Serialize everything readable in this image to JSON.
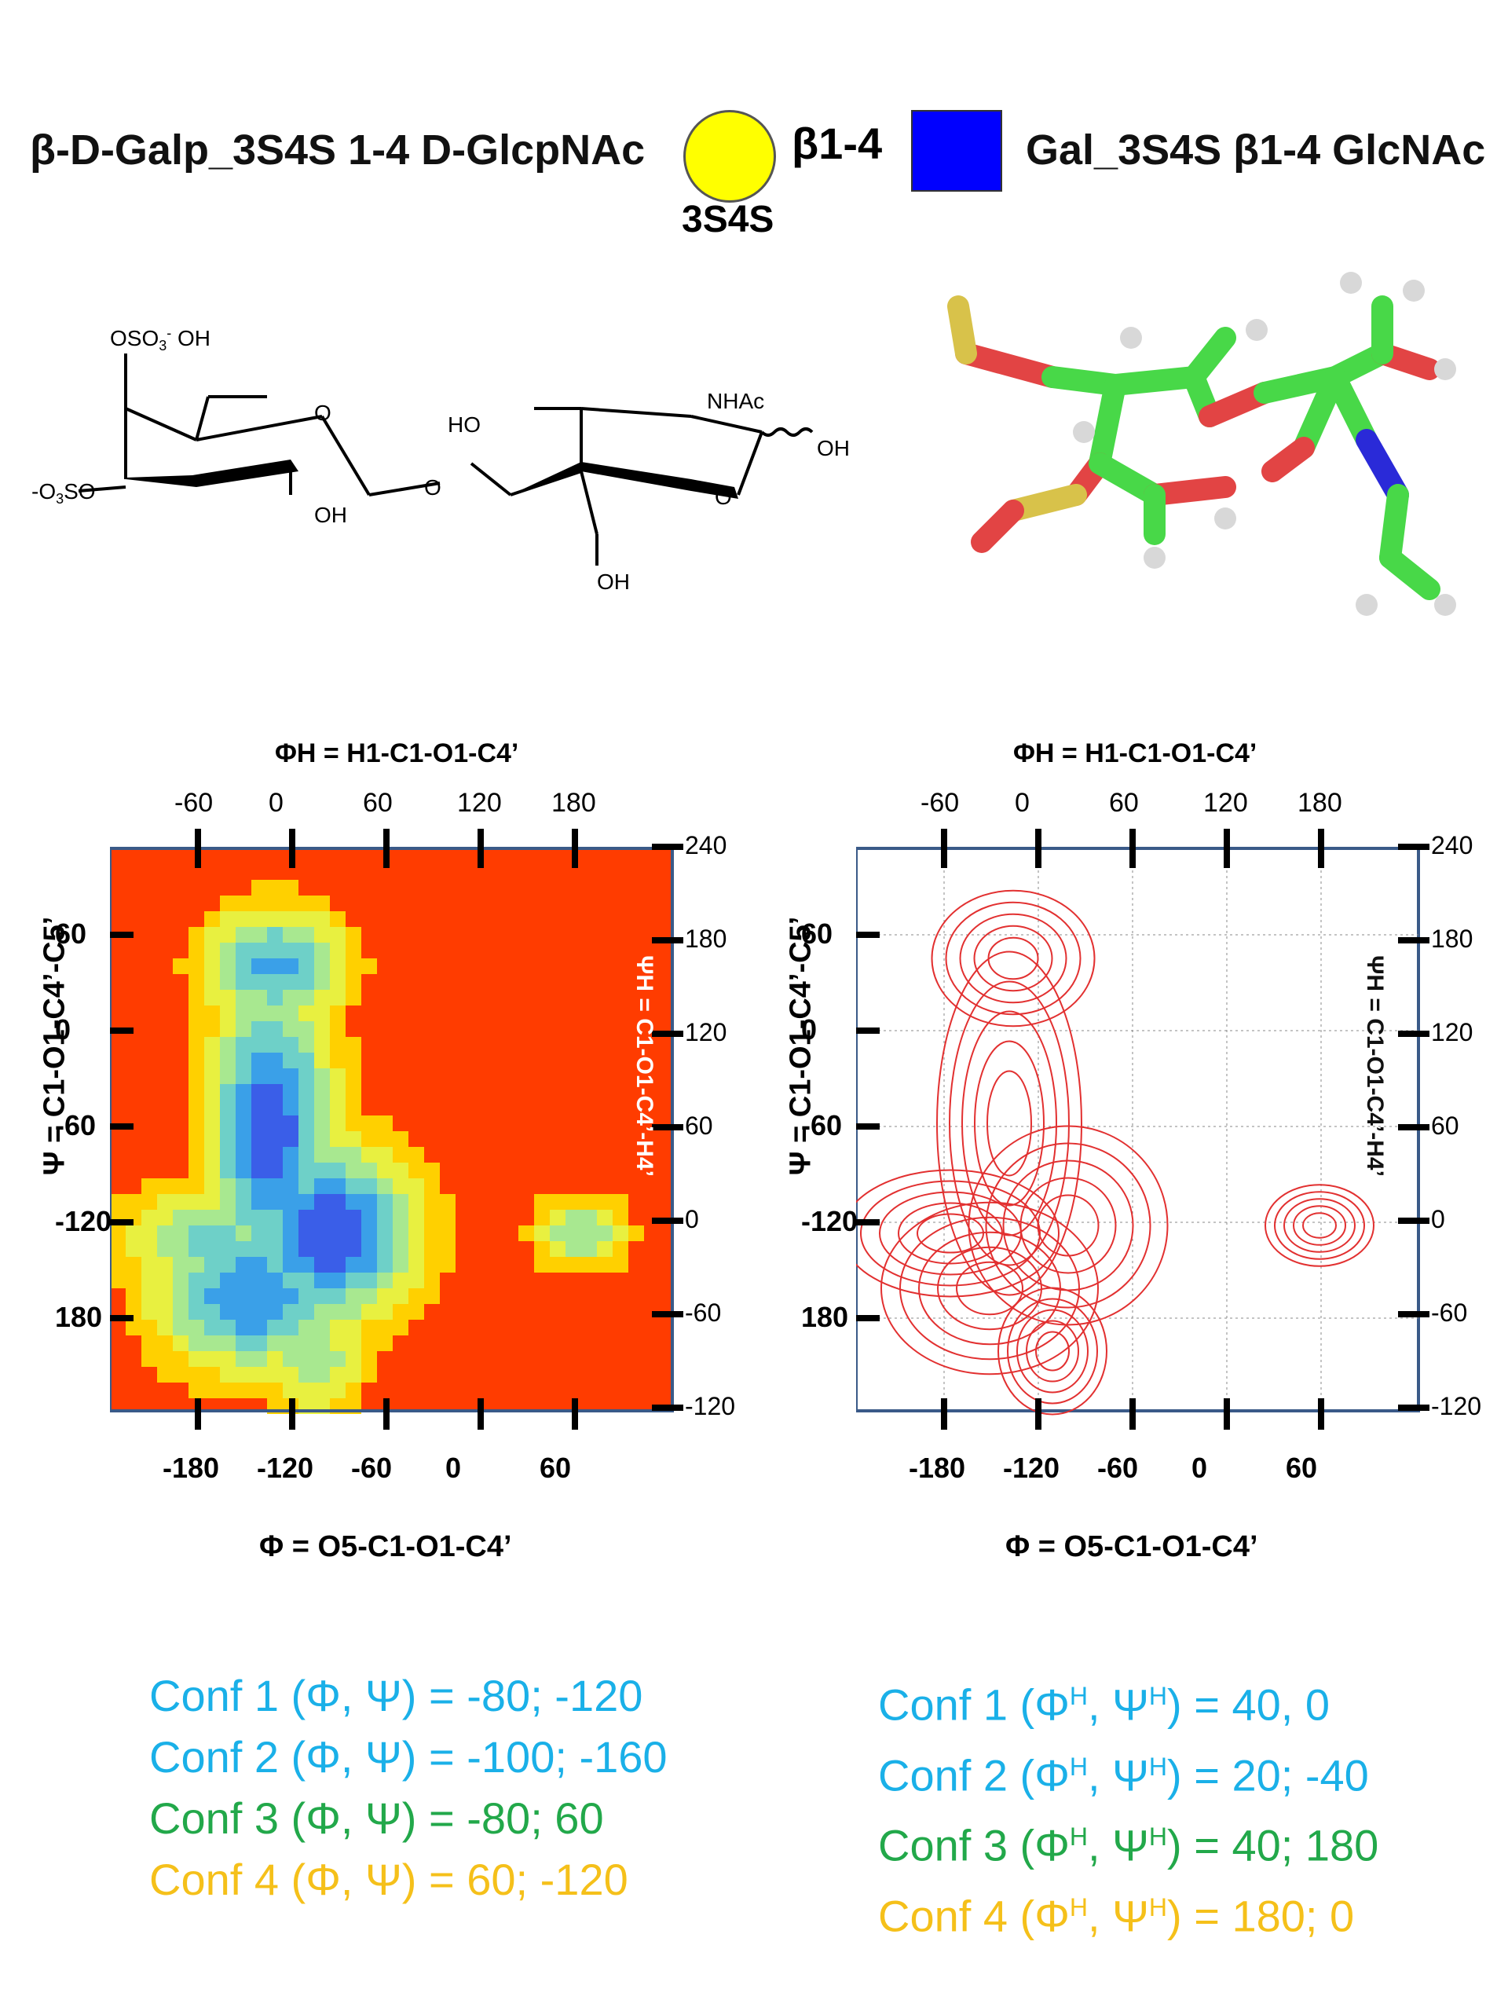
{
  "header": {
    "title_left": "β-D-Galp_3S4S 1-4 D-GlcpNAc",
    "beta_link": "β1-4",
    "circle_label": "3S4S",
    "title_right": "Gal_3S4S β1-4 GlcNAc",
    "colors": {
      "gal": "#ffff00",
      "glcnac": "#0000ff"
    }
  },
  "structure": {
    "labels": [
      "OSO3- OH",
      "-O3SO",
      "OH",
      "O",
      "HO",
      "NHAc",
      "OH",
      "O",
      "OH",
      "O"
    ]
  },
  "plots": {
    "top_axis_title": "ΦH = H1-C1-O1-C4’",
    "top_ticks": [
      "-60",
      "0",
      "60",
      "120",
      "180"
    ],
    "bottom_axis_title": "Φ = O5-C1-O1-C4’",
    "bottom_ticks": [
      "-180",
      "-120",
      "-60",
      "0",
      "60"
    ],
    "left_axis_title": "Ψ = C1-O1-C4’-C5’",
    "left_ticks": [
      "60",
      "0",
      "-60",
      "-120",
      "180"
    ],
    "right_axis_title": "ΨH = C1-O1-C4’-H4’",
    "right_ticks": [
      "240",
      "180",
      "120",
      "60",
      "0",
      "-60",
      "-120"
    ]
  },
  "chart_data": [
    {
      "type": "heatmap",
      "x_axis": "Φ = O5-C1-O1-C4’",
      "y_axis": "Ψ = C1-O1-C4’-C5’",
      "minima": [
        {
          "phi": -80,
          "psi": -120
        },
        {
          "phi": -100,
          "psi": -160
        },
        {
          "phi": -80,
          "psi": 60
        },
        {
          "phi": 60,
          "psi": -120
        }
      ]
    },
    {
      "type": "contour",
      "x_axis": "ΦH = H1-C1-O1-C4’",
      "y_axis": "ΨH = C1-O1-C4’-H4’",
      "minima": [
        {
          "phiH": 40,
          "psiH": 0
        },
        {
          "phiH": 20,
          "psiH": -40
        },
        {
          "phiH": 40,
          "psiH": 180
        },
        {
          "phiH": 180,
          "psiH": 0
        }
      ]
    }
  ],
  "conformations_left": [
    {
      "prefix": "Conf 1 (",
      "sym": "Φ, Ψ",
      "suffix": ") = -80; -120",
      "color": "blue"
    },
    {
      "prefix": "Conf 2 (",
      "sym": "Φ, Ψ",
      "suffix": ") = -100; -160",
      "color": "blue"
    },
    {
      "prefix": "Conf 3 (",
      "sym": "Φ, Ψ",
      "suffix": ") =  -80; 60",
      "color": "green"
    },
    {
      "prefix": "Conf 4 (",
      "sym": "Φ, Ψ",
      "suffix": ") = 60; -120",
      "color": "orange"
    }
  ],
  "conformations_right": [
    {
      "prefix": "Conf 1 (",
      "suffix": ") = 40, 0",
      "color": "blue"
    },
    {
      "prefix": "Conf 2 (",
      "suffix": ") = 20; -40",
      "color": "blue"
    },
    {
      "prefix": "Conf 3 (",
      "suffix": ") = 40; 180",
      "color": "green"
    },
    {
      "prefix": "Conf 4 (",
      "suffix": ") = 180; 0",
      "color": "orange"
    }
  ]
}
